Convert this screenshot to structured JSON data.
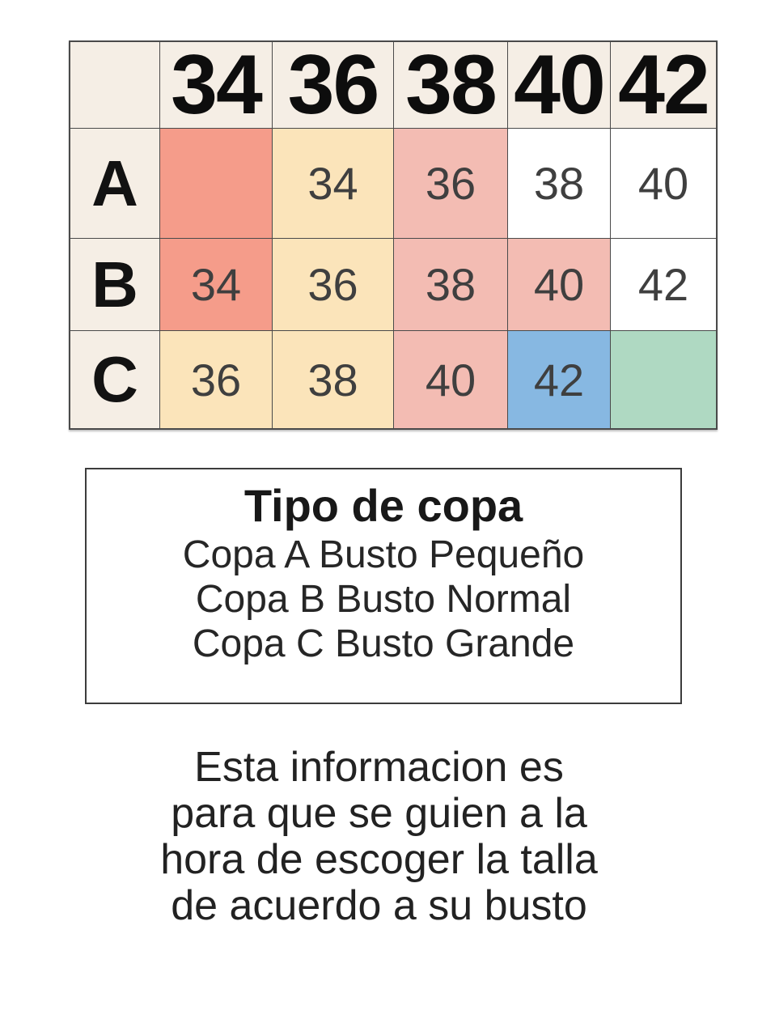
{
  "table": {
    "col_headers": [
      "",
      "34",
      "36",
      "38",
      "40",
      "42"
    ],
    "rows": [
      {
        "label": "A",
        "cells": [
          {
            "text": "",
            "bg": "salmon"
          },
          {
            "text": "34",
            "bg": "yellow"
          },
          {
            "text": "36",
            "bg": "pink"
          },
          {
            "text": "38",
            "bg": "white"
          },
          {
            "text": "40",
            "bg": "white"
          }
        ]
      },
      {
        "label": "B",
        "cells": [
          {
            "text": "34",
            "bg": "salmon"
          },
          {
            "text": "36",
            "bg": "yellow"
          },
          {
            "text": "38",
            "bg": "pink"
          },
          {
            "text": "40",
            "bg": "pink"
          },
          {
            "text": "42",
            "bg": "white"
          }
        ]
      },
      {
        "label": "C",
        "cells": [
          {
            "text": "36",
            "bg": "yellow"
          },
          {
            "text": "38",
            "bg": "yellow"
          },
          {
            "text": "40",
            "bg": "pink"
          },
          {
            "text": "42",
            "bg": "blue"
          },
          {
            "text": "",
            "bg": "green"
          }
        ]
      }
    ],
    "colors": {
      "header_bg": "#F5EEE5",
      "salmon": "#F59C8A",
      "yellow": "#FBE4BA",
      "pink": "#F3BCB3",
      "blue": "#87B8E2",
      "green": "#AFD9C2",
      "white": "#FFFFFF",
      "border": "#4A4A4A"
    }
  },
  "cup_info": {
    "title": "Tipo de copa",
    "lines": [
      "Copa A Busto Pequeño",
      "Copa B Busto Normal",
      "Copa C Busto Grande"
    ]
  },
  "footer": {
    "lines": [
      "Esta informacion es",
      "para que se guien a la",
      "hora de escoger la talla",
      "de acuerdo a su busto"
    ]
  }
}
